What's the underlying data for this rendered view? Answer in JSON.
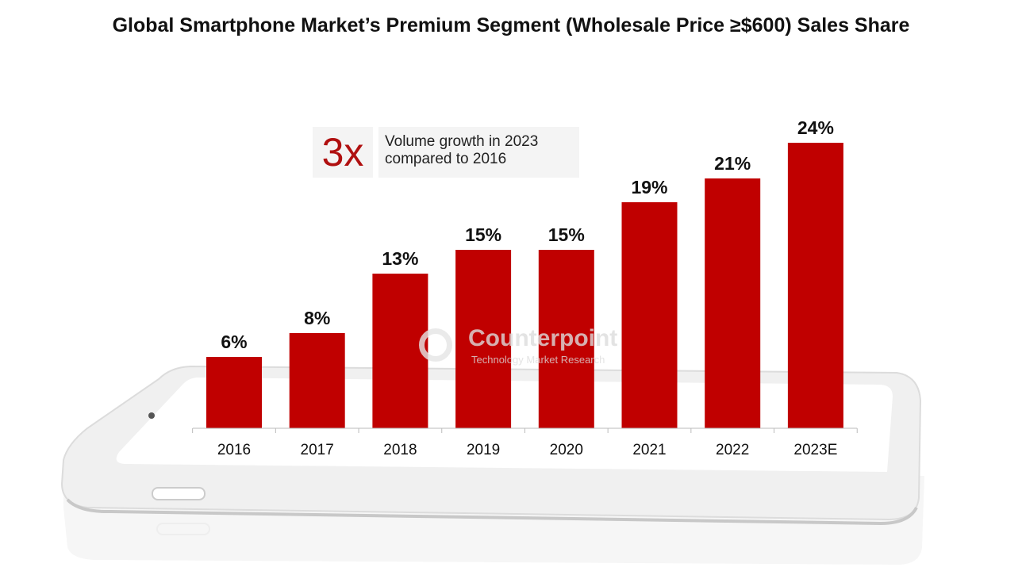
{
  "chart_data": {
    "type": "bar",
    "title": "Global Smartphone Market’s Premium Segment (Wholesale Price ≥$600) Sales Share",
    "categories": [
      "2016",
      "2017",
      "2018",
      "2019",
      "2020",
      "2021",
      "2022",
      "2023E"
    ],
    "values": [
      6,
      8,
      13,
      15,
      15,
      19,
      21,
      24
    ],
    "data_labels": [
      "6%",
      "8%",
      "13%",
      "15%",
      "15%",
      "19%",
      "21%",
      "24%"
    ],
    "ylim": [
      0,
      25
    ],
    "grid": false,
    "xlabel": "",
    "ylabel": "",
    "bar_color": "#c00000",
    "annotation": {
      "highlight": "3x",
      "text_line1": "Volume growth in 2023",
      "text_line2": "compared to 2016",
      "highlight_color": "#b01010"
    }
  },
  "watermark": {
    "brand": "Counterpoint",
    "tagline": "Technology Market Research"
  }
}
